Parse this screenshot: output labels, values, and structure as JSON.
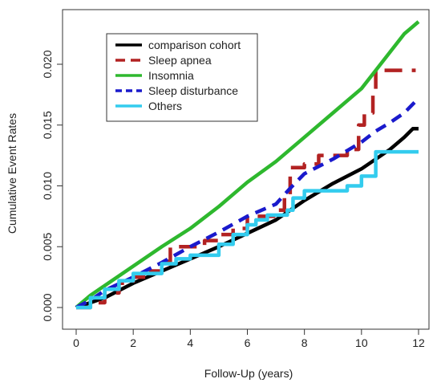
{
  "chart_data": {
    "type": "line",
    "title": "",
    "xlabel": "Follow-Up (years)",
    "ylabel": "Cumulative Event Rates",
    "xlim": [
      0,
      12
    ],
    "ylim": [
      0,
      0.0235
    ],
    "xticks": [
      0,
      2,
      4,
      6,
      8,
      10,
      12
    ],
    "xtick_labels": [
      "0",
      "2",
      "4",
      "6",
      "8",
      "10",
      "12"
    ],
    "yticks": [
      0.0,
      0.005,
      0.01,
      0.015,
      0.02
    ],
    "ytick_labels": [
      "0.000",
      "0.005",
      "0.010",
      "0.015",
      "0.020"
    ],
    "grid": false,
    "legend_position": "top-left",
    "series": [
      {
        "name": "comparison cohort",
        "color": "#000000",
        "dash": "solid",
        "step": false,
        "points": [
          [
            0,
            0
          ],
          [
            1,
            0.0008
          ],
          [
            2,
            0.002
          ],
          [
            3,
            0.003
          ],
          [
            4,
            0.004
          ],
          [
            5,
            0.005
          ],
          [
            6,
            0.0061
          ],
          [
            7,
            0.0072
          ],
          [
            8,
            0.0088
          ],
          [
            9,
            0.0102
          ],
          [
            10,
            0.0114
          ],
          [
            10.5,
            0.0122
          ],
          [
            11,
            0.013
          ],
          [
            11.5,
            0.014
          ],
          [
            11.8,
            0.0147
          ],
          [
            12,
            0.0147
          ]
        ]
      },
      {
        "name": "Sleep apnea",
        "color": "#b22222",
        "dash": "long-dash",
        "step": true,
        "points": [
          [
            0,
            0
          ],
          [
            0.5,
            0.0004
          ],
          [
            1,
            0.0012
          ],
          [
            1.5,
            0.002
          ],
          [
            2,
            0.0025
          ],
          [
            2.5,
            0.003
          ],
          [
            3,
            0.0038
          ],
          [
            3.3,
            0.005
          ],
          [
            4,
            0.005
          ],
          [
            4.5,
            0.0055
          ],
          [
            5,
            0.006
          ],
          [
            5.5,
            0.0065
          ],
          [
            6,
            0.0075
          ],
          [
            7,
            0.008
          ],
          [
            7.3,
            0.009
          ],
          [
            7.5,
            0.0115
          ],
          [
            8,
            0.0118
          ],
          [
            8.5,
            0.0125
          ],
          [
            9.2,
            0.0125
          ],
          [
            9.5,
            0.013
          ],
          [
            9.9,
            0.015
          ],
          [
            10.1,
            0.016
          ],
          [
            10.4,
            0.0175
          ],
          [
            10.5,
            0.0195
          ],
          [
            11.9,
            0.0195
          ]
        ]
      },
      {
        "name": "Insomnia",
        "color": "#2eb82e",
        "dash": "solid",
        "step": false,
        "points": [
          [
            0,
            0
          ],
          [
            0.5,
            0.001
          ],
          [
            1,
            0.0018
          ],
          [
            2,
            0.0034
          ],
          [
            3,
            0.005
          ],
          [
            4,
            0.0065
          ],
          [
            5,
            0.0083
          ],
          [
            6,
            0.0103
          ],
          [
            7,
            0.012
          ],
          [
            8,
            0.014
          ],
          [
            9,
            0.016
          ],
          [
            10,
            0.018
          ],
          [
            10.5,
            0.0195
          ],
          [
            11,
            0.021
          ],
          [
            11.5,
            0.0225
          ],
          [
            12,
            0.0235
          ]
        ]
      },
      {
        "name": "Sleep disturbance",
        "color": "#1a1acc",
        "dash": "dash",
        "step": false,
        "points": [
          [
            0,
            0
          ],
          [
            0.5,
            0.0006
          ],
          [
            1,
            0.0014
          ],
          [
            2,
            0.0025
          ],
          [
            3,
            0.0037
          ],
          [
            4,
            0.005
          ],
          [
            5,
            0.0062
          ],
          [
            6,
            0.0075
          ],
          [
            7,
            0.0085
          ],
          [
            7.5,
            0.0098
          ],
          [
            8,
            0.011
          ],
          [
            9,
            0.0122
          ],
          [
            10,
            0.0136
          ],
          [
            10.5,
            0.0145
          ],
          [
            11,
            0.0152
          ],
          [
            11.5,
            0.016
          ],
          [
            12,
            0.0172
          ]
        ]
      },
      {
        "name": "Others",
        "color": "#33ccee",
        "dash": "solid",
        "step": true,
        "points": [
          [
            0,
            0
          ],
          [
            0.5,
            0.0008
          ],
          [
            1,
            0.0015
          ],
          [
            1.5,
            0.0022
          ],
          [
            2,
            0.0028
          ],
          [
            3,
            0.0036
          ],
          [
            3.5,
            0.004
          ],
          [
            4,
            0.0043
          ],
          [
            5,
            0.0052
          ],
          [
            5.5,
            0.006
          ],
          [
            6,
            0.0068
          ],
          [
            6.3,
            0.0072
          ],
          [
            6.7,
            0.0076
          ],
          [
            7.4,
            0.008
          ],
          [
            7.6,
            0.009
          ],
          [
            8,
            0.0096
          ],
          [
            9,
            0.0096
          ],
          [
            9.5,
            0.01
          ],
          [
            10,
            0.0108
          ],
          [
            10.5,
            0.0128
          ],
          [
            12,
            0.0128
          ]
        ]
      }
    ]
  }
}
